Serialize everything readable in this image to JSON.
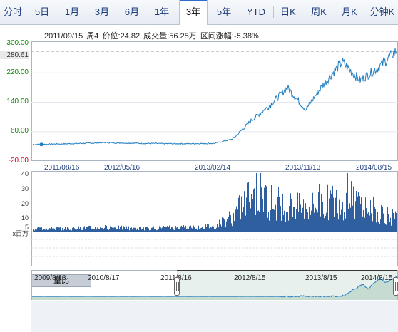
{
  "tabs": [
    {
      "label": "分时"
    },
    {
      "label": "5日"
    },
    {
      "label": "1月"
    },
    {
      "label": "3月"
    },
    {
      "label": "6月"
    },
    {
      "label": "1年"
    },
    {
      "label": "3年"
    },
    {
      "label": "5年"
    },
    {
      "label": "YTD"
    },
    {
      "label": "日K"
    },
    {
      "label": "周K"
    },
    {
      "label": "月K"
    },
    {
      "label": "分钟K"
    }
  ],
  "active_tab": "3年",
  "info": {
    "date": "2011/09/15",
    "weekday": "周4",
    "price": "价位:24.82",
    "volume": "成交量:56.25万",
    "change": "区间涨幅:-5.38%"
  },
  "price_axis": {
    "labels": [
      "300.00",
      "280.61",
      "220.00",
      "140.00",
      "60.00",
      "-20.00"
    ],
    "current": "280.61"
  },
  "date_axis": {
    "labels": [
      "2011/08/16",
      "2012/05/16",
      "2013/02/14",
      "2013/11/13",
      "2014/08/15"
    ]
  },
  "volume_axis": {
    "labels": [
      "40",
      "30",
      "20",
      "10",
      "5"
    ],
    "unit": "x百万"
  },
  "indicator_tab": "量比",
  "navigator": {
    "labels": [
      "2009/8/18",
      "2010/8/17",
      "2011/8/16",
      "2012/8/15",
      "2013/8/15",
      "2014/8/15"
    ]
  },
  "colors": {
    "line": "#1f7dc1",
    "volume": "#2f5f9e",
    "axis_green": "#0a8a00",
    "axis_red": "#d0021b",
    "nav_fill": "#d7e6e0"
  },
  "chart_data": {
    "type": "line",
    "x_range": [
      "2011/08/16",
      "2014/08/15"
    ],
    "ylim": [
      -20,
      300
    ],
    "price_series": {
      "x": [
        0,
        0.1,
        0.2,
        0.3,
        0.4,
        0.5,
        0.55,
        0.6,
        0.65,
        0.7,
        0.75,
        0.8,
        0.85,
        0.9,
        0.95,
        1.0
      ],
      "values": [
        25,
        27,
        30,
        28,
        27,
        28,
        40,
        90,
        130,
        180,
        120,
        190,
        250,
        200,
        235,
        280
      ]
    },
    "volume_series": {
      "ylim": [
        0,
        40
      ],
      "x": [
        0,
        0.1,
        0.2,
        0.3,
        0.4,
        0.5,
        0.55,
        0.6,
        0.65,
        0.7,
        0.75,
        0.8,
        0.85,
        0.9,
        0.95,
        1.0
      ],
      "values": [
        3,
        3,
        4,
        3,
        4,
        5,
        15,
        36,
        30,
        25,
        22,
        28,
        30,
        26,
        20,
        12
      ]
    }
  }
}
